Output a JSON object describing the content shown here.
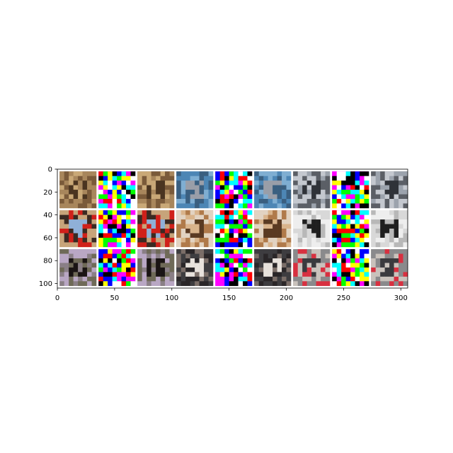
{
  "chart_data": {
    "type": "heatmap",
    "description_type": "image-grid",
    "title": "",
    "xlabel": "",
    "ylabel": "",
    "xlim": [
      0,
      306
    ],
    "ylim": [
      104,
      0
    ],
    "x_ticks": [
      0,
      50,
      100,
      150,
      200,
      250,
      300
    ],
    "y_ticks": [
      0,
      20,
      40,
      60,
      80,
      100
    ],
    "grid": false,
    "legend": "none",
    "tile_size": 32,
    "tile_padding": 2,
    "columns": 9,
    "rows": 3,
    "tiles": [
      {
        "row": 0,
        "col": 0,
        "kind": "image",
        "subject": "cat",
        "colors": [
          "#7a5a3a",
          "#a8865c",
          "#4a3420",
          "#c9a877"
        ]
      },
      {
        "row": 0,
        "col": 1,
        "kind": "noise",
        "colors": [
          "#ff00ff",
          "#00ffff",
          "#ffff00",
          "#000000",
          "#ffffff",
          "#ff0000",
          "#00ff00",
          "#0000ff"
        ]
      },
      {
        "row": 0,
        "col": 2,
        "kind": "image",
        "subject": "cat",
        "colors": [
          "#7a5a3a",
          "#a8865c",
          "#4a3420",
          "#c9a877"
        ]
      },
      {
        "row": 0,
        "col": 3,
        "kind": "image",
        "subject": "cat",
        "colors": [
          "#4d86b5",
          "#7faed2",
          "#9a9ea8",
          "#3a5f80"
        ]
      },
      {
        "row": 0,
        "col": 4,
        "kind": "noise",
        "colors": [
          "#ff00ff",
          "#00ffff",
          "#ffff00",
          "#000000",
          "#ffffff",
          "#ff0000",
          "#00ff00",
          "#0000ff"
        ]
      },
      {
        "row": 0,
        "col": 5,
        "kind": "image",
        "subject": "cat",
        "colors": [
          "#4d86b5",
          "#7faed2",
          "#9a9ea8",
          "#3a5f80"
        ]
      },
      {
        "row": 0,
        "col": 6,
        "kind": "image",
        "subject": "car",
        "colors": [
          "#5b5f66",
          "#9ca3ad",
          "#2f3238",
          "#c4c8cf"
        ]
      },
      {
        "row": 0,
        "col": 7,
        "kind": "noise",
        "colors": [
          "#ff00ff",
          "#00ffff",
          "#ffff00",
          "#000000",
          "#ffffff",
          "#ff0000",
          "#00ff00",
          "#0000ff"
        ]
      },
      {
        "row": 0,
        "col": 8,
        "kind": "image",
        "subject": "car",
        "colors": [
          "#5b5f66",
          "#9ca3ad",
          "#2f3238",
          "#c4c8cf"
        ]
      },
      {
        "row": 1,
        "col": 0,
        "kind": "image",
        "subject": "truck",
        "colors": [
          "#c7a47a",
          "#d0201a",
          "#8fb0d8",
          "#3a2a22"
        ]
      },
      {
        "row": 1,
        "col": 1,
        "kind": "noise",
        "colors": [
          "#ff00ff",
          "#00ffff",
          "#ffff00",
          "#000000",
          "#ffffff",
          "#ff0000",
          "#00ff00",
          "#0000ff"
        ]
      },
      {
        "row": 1,
        "col": 2,
        "kind": "image",
        "subject": "truck",
        "colors": [
          "#c7a47a",
          "#d0201a",
          "#8fb0d8",
          "#3a2a22"
        ]
      },
      {
        "row": 1,
        "col": 3,
        "kind": "image",
        "subject": "cat",
        "colors": [
          "#b07a4a",
          "#e2d3c2",
          "#5a3a22",
          "#d9b48c"
        ]
      },
      {
        "row": 1,
        "col": 4,
        "kind": "noise",
        "colors": [
          "#ff00ff",
          "#00ffff",
          "#ffff00",
          "#000000",
          "#ffffff",
          "#ff0000",
          "#00ff00",
          "#0000ff"
        ]
      },
      {
        "row": 1,
        "col": 5,
        "kind": "image",
        "subject": "cat",
        "colors": [
          "#b07a4a",
          "#e2d3c2",
          "#5a3a22",
          "#d9b48c"
        ]
      },
      {
        "row": 1,
        "col": 6,
        "kind": "image",
        "subject": "cat",
        "colors": [
          "#eeeeee",
          "#d8d8d8",
          "#1e1e1e",
          "#b8b8b8"
        ]
      },
      {
        "row": 1,
        "col": 7,
        "kind": "noise",
        "colors": [
          "#ff00ff",
          "#00ffff",
          "#ffff00",
          "#000000",
          "#ffffff",
          "#ff0000",
          "#00ff00",
          "#0000ff"
        ]
      },
      {
        "row": 1,
        "col": 8,
        "kind": "image",
        "subject": "cat",
        "colors": [
          "#eeeeee",
          "#d8d8d8",
          "#1e1e1e",
          "#b8b8b8"
        ]
      },
      {
        "row": 2,
        "col": 0,
        "kind": "image",
        "subject": "horse",
        "colors": [
          "#b9a7c4",
          "#8a7f86",
          "#1a1414",
          "#6f6a58"
        ]
      },
      {
        "row": 2,
        "col": 1,
        "kind": "noise",
        "colors": [
          "#ff00ff",
          "#00ffff",
          "#ffff00",
          "#000000",
          "#ffffff",
          "#ff0000",
          "#00ff00",
          "#0000ff"
        ]
      },
      {
        "row": 2,
        "col": 2,
        "kind": "image",
        "subject": "horse",
        "colors": [
          "#b9a7c4",
          "#8a7f86",
          "#1a1414",
          "#6f6a58"
        ]
      },
      {
        "row": 2,
        "col": 3,
        "kind": "image",
        "subject": "horse",
        "colors": [
          "#3e3d40",
          "#7b6e68",
          "#e8e2dc",
          "#2a2628"
        ]
      },
      {
        "row": 2,
        "col": 4,
        "kind": "noise",
        "colors": [
          "#ff00ff",
          "#00ffff",
          "#ffff00",
          "#000000",
          "#ffffff",
          "#ff0000",
          "#00ff00",
          "#0000ff"
        ]
      },
      {
        "row": 2,
        "col": 5,
        "kind": "image",
        "subject": "horse",
        "colors": [
          "#3e3d40",
          "#7b6e68",
          "#e8e2dc",
          "#2a2628"
        ]
      },
      {
        "row": 2,
        "col": 6,
        "kind": "image",
        "subject": "car",
        "colors": [
          "#8a8a8c",
          "#d83040",
          "#3a3a3e",
          "#c9c2bc"
        ]
      },
      {
        "row": 2,
        "col": 7,
        "kind": "noise",
        "colors": [
          "#ff00ff",
          "#00ffff",
          "#ffff00",
          "#000000",
          "#ffffff",
          "#ff0000",
          "#00ff00",
          "#0000ff"
        ]
      },
      {
        "row": 2,
        "col": 8,
        "kind": "image",
        "subject": "car",
        "colors": [
          "#8a8a8c",
          "#d83040",
          "#3a3a3e",
          "#c9c2bc"
        ]
      }
    ]
  }
}
